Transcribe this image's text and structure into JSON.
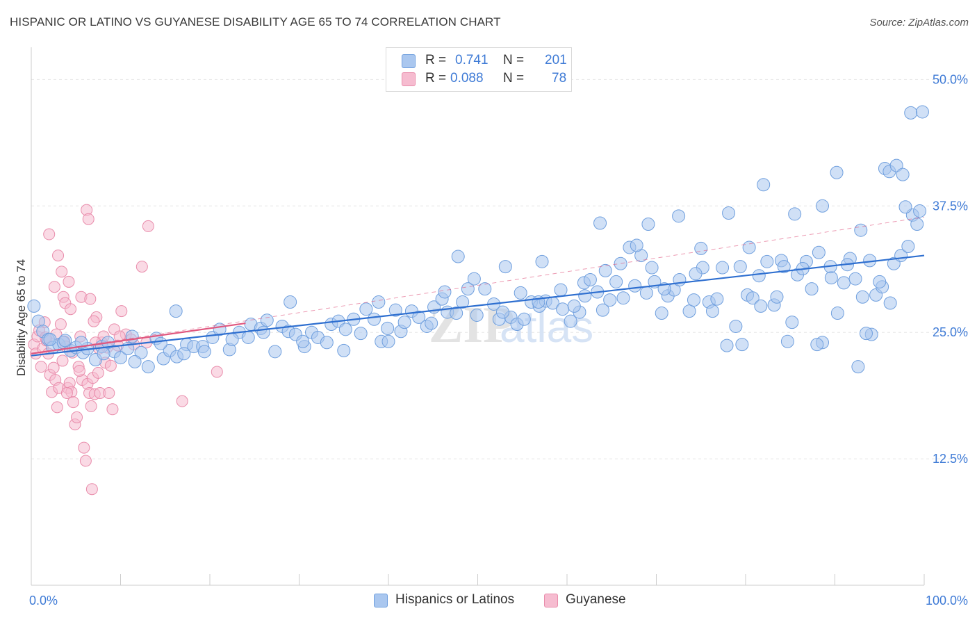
{
  "title": "HISPANIC OR LATINO VS GUYANESE DISABILITY AGE 65 TO 74 CORRELATION CHART",
  "source": "Source: ZipAtlas.com",
  "watermark": {
    "zip": "ZIP",
    "atlas": "atlas"
  },
  "legend": {
    "rows": [
      {
        "r_label": "R =",
        "r_value": "0.741",
        "n_label": "N =",
        "n_value": "201"
      },
      {
        "r_label": "R =",
        "r_value": "0.088",
        "n_label": "N =",
        "n_value": "78"
      }
    ]
  },
  "bottom_legend": {
    "blue": "Hispanics or Latinos",
    "pink": "Guyanese"
  },
  "colors": {
    "blue_fill": "#aac7ef",
    "blue_stroke": "#6f9fde",
    "blue_line": "#2e6fd0",
    "pink_fill": "#f6bcd0",
    "pink_stroke": "#e98cab",
    "pink_line": "#e0577f",
    "tick_label": "#3f7bd6",
    "grid": "#e6e6e6"
  },
  "chart_data": {
    "type": "scatter",
    "title": "HISPANIC OR LATINO VS GUYANESE DISABILITY AGE 65 TO 74 CORRELATION CHART",
    "ylabel": "Disability Age 65 to 74",
    "xlabel": "",
    "xlim": [
      0,
      100
    ],
    "ylim": [
      0,
      52.5
    ],
    "x_tick_labels": [
      "0.0%",
      "100.0%"
    ],
    "y_ticks": [
      12.5,
      25.0,
      37.5,
      50.0
    ],
    "y_tick_labels": [
      "12.5%",
      "25.0%",
      "37.5%",
      "50.0%"
    ],
    "grid": "horizontal dashed",
    "series": [
      {
        "name": "Hispanics or Latinos",
        "R": 0.741,
        "N": 201,
        "trend": {
          "x": [
            0,
            100
          ],
          "y": [
            22.7,
            32.6
          ]
        },
        "points": [
          [
            0.3,
            27.6
          ],
          [
            0.8,
            26.1
          ],
          [
            1.3,
            25.1
          ],
          [
            1.9,
            24.3
          ],
          [
            2.4,
            23.5
          ],
          [
            3.1,
            23.8
          ],
          [
            3.6,
            24.0
          ],
          [
            4.4,
            23.2
          ],
          [
            5.0,
            23.5
          ],
          [
            5.8,
            23.0
          ],
          [
            6.3,
            23.4
          ],
          [
            7.2,
            22.3
          ],
          [
            7.9,
            23.6
          ],
          [
            8.6,
            24.0
          ],
          [
            9.3,
            23.1
          ],
          [
            10.0,
            22.5
          ],
          [
            10.8,
            23.4
          ],
          [
            11.3,
            24.6
          ],
          [
            12.3,
            23.0
          ],
          [
            13.1,
            21.6
          ],
          [
            14.0,
            24.4
          ],
          [
            14.8,
            22.4
          ],
          [
            15.5,
            23.2
          ],
          [
            16.3,
            22.6
          ],
          [
            17.4,
            23.8
          ],
          [
            18.2,
            23.6
          ],
          [
            19.2,
            23.6
          ],
          [
            20.3,
            24.5
          ],
          [
            21.1,
            25.3
          ],
          [
            22.2,
            23.3
          ],
          [
            23.3,
            25.0
          ],
          [
            24.3,
            24.5
          ],
          [
            24.6,
            25.8
          ],
          [
            25.7,
            25.4
          ],
          [
            26.4,
            26.2
          ],
          [
            27.3,
            23.1
          ],
          [
            28.1,
            25.6
          ],
          [
            28.8,
            25.1
          ],
          [
            29.6,
            24.8
          ],
          [
            30.6,
            23.6
          ],
          [
            31.4,
            25.0
          ],
          [
            32.1,
            24.5
          ],
          [
            33.1,
            24.0
          ],
          [
            33.6,
            25.8
          ],
          [
            34.4,
            26.1
          ],
          [
            35.2,
            25.3
          ],
          [
            36.1,
            26.3
          ],
          [
            36.9,
            24.9
          ],
          [
            37.5,
            27.3
          ],
          [
            38.4,
            26.3
          ],
          [
            39.2,
            24.1
          ],
          [
            39.9,
            25.4
          ],
          [
            40.8,
            27.2
          ],
          [
            41.4,
            25.1
          ],
          [
            41.8,
            26.0
          ],
          [
            42.6,
            27.1
          ],
          [
            43.4,
            26.5
          ],
          [
            44.3,
            25.6
          ],
          [
            45.1,
            27.5
          ],
          [
            46.0,
            28.3
          ],
          [
            46.6,
            27.0
          ],
          [
            47.6,
            26.9
          ],
          [
            48.3,
            28.0
          ],
          [
            48.9,
            29.3
          ],
          [
            49.6,
            30.3
          ],
          [
            50.8,
            29.3
          ],
          [
            51.8,
            27.8
          ],
          [
            52.4,
            26.3
          ],
          [
            53.7,
            26.5
          ],
          [
            54.4,
            25.8
          ],
          [
            55.2,
            26.3
          ],
          [
            56.0,
            28.0
          ],
          [
            56.9,
            27.6
          ],
          [
            57.6,
            28.1
          ],
          [
            58.4,
            27.9
          ],
          [
            59.5,
            27.3
          ],
          [
            60.4,
            26.1
          ],
          [
            61.4,
            27.0
          ],
          [
            61.9,
            29.9
          ],
          [
            62.6,
            30.2
          ],
          [
            63.4,
            29.0
          ],
          [
            64.0,
            27.2
          ],
          [
            64.8,
            28.2
          ],
          [
            65.5,
            30.0
          ],
          [
            66.3,
            28.4
          ],
          [
            67.0,
            33.4
          ],
          [
            67.6,
            29.6
          ],
          [
            68.3,
            32.6
          ],
          [
            68.9,
            28.9
          ],
          [
            69.8,
            30.0
          ],
          [
            70.6,
            26.9
          ],
          [
            71.3,
            28.6
          ],
          [
            72.0,
            29.2
          ],
          [
            72.6,
            30.2
          ],
          [
            73.7,
            27.1
          ],
          [
            74.2,
            28.2
          ],
          [
            75.2,
            31.4
          ],
          [
            75.9,
            28.0
          ],
          [
            76.3,
            27.1
          ],
          [
            77.4,
            31.4
          ],
          [
            77.9,
            23.7
          ],
          [
            78.9,
            25.6
          ],
          [
            79.6,
            23.8
          ],
          [
            80.2,
            28.7
          ],
          [
            80.8,
            28.4
          ],
          [
            81.5,
            30.6
          ],
          [
            82.4,
            32.0
          ],
          [
            83.2,
            27.7
          ],
          [
            84.0,
            32.1
          ],
          [
            84.7,
            24.1
          ],
          [
            85.2,
            26.0
          ],
          [
            85.8,
            30.7
          ],
          [
            86.8,
            32.0
          ],
          [
            87.4,
            29.3
          ],
          [
            88.2,
            32.9
          ],
          [
            88.6,
            24.0
          ],
          [
            89.6,
            30.4
          ],
          [
            90.3,
            26.9
          ],
          [
            91.0,
            29.9
          ],
          [
            91.7,
            32.3
          ],
          [
            92.3,
            30.3
          ],
          [
            93.1,
            28.5
          ],
          [
            93.9,
            32.1
          ],
          [
            94.6,
            28.7
          ],
          [
            95.3,
            29.5
          ],
          [
            96.2,
            27.9
          ],
          [
            96.6,
            31.8
          ],
          [
            97.4,
            32.6
          ],
          [
            98.2,
            33.5
          ],
          [
            98.7,
            36.6
          ],
          [
            99.2,
            35.7
          ],
          [
            99.5,
            37.0
          ],
          [
            16.2,
            27.1
          ],
          [
            29.0,
            28.0
          ],
          [
            47.8,
            32.5
          ],
          [
            53.1,
            31.5
          ],
          [
            57.2,
            32.0
          ],
          [
            60.8,
            27.6
          ],
          [
            63.7,
            35.8
          ],
          [
            66.0,
            31.8
          ],
          [
            69.1,
            35.7
          ],
          [
            72.5,
            36.5
          ],
          [
            75.0,
            33.3
          ],
          [
            78.1,
            36.8
          ],
          [
            80.4,
            33.4
          ],
          [
            82.0,
            39.6
          ],
          [
            83.5,
            28.5
          ],
          [
            85.5,
            36.7
          ],
          [
            86.4,
            31.3
          ],
          [
            88.6,
            37.5
          ],
          [
            90.2,
            40.8
          ],
          [
            91.4,
            31.7
          ],
          [
            92.9,
            35.1
          ],
          [
            94.1,
            24.8
          ],
          [
            95.6,
            41.2
          ],
          [
            96.1,
            40.9
          ],
          [
            96.9,
            41.5
          ],
          [
            97.6,
            40.6
          ],
          [
            98.5,
            46.7
          ],
          [
            99.8,
            46.8
          ],
          [
            2.1,
            24.3
          ],
          [
            3.8,
            24.2
          ],
          [
            5.6,
            24.0
          ],
          [
            8.1,
            22.9
          ],
          [
            11.6,
            22.1
          ],
          [
            14.5,
            23.9
          ],
          [
            17.1,
            22.9
          ],
          [
            19.4,
            23.1
          ],
          [
            22.5,
            24.3
          ],
          [
            26.0,
            25.0
          ],
          [
            30.4,
            24.1
          ],
          [
            35.0,
            23.2
          ],
          [
            40.0,
            24.1
          ],
          [
            44.8,
            25.9
          ],
          [
            49.9,
            26.7
          ],
          [
            54.8,
            28.9
          ],
          [
            59.3,
            29.2
          ],
          [
            64.3,
            31.1
          ],
          [
            69.5,
            31.4
          ],
          [
            74.4,
            30.8
          ],
          [
            79.4,
            31.5
          ],
          [
            84.3,
            31.5
          ],
          [
            89.5,
            31.5
          ],
          [
            92.6,
            21.6
          ],
          [
            95.0,
            30.0
          ],
          [
            97.9,
            37.4
          ],
          [
            56.8,
            28.0
          ],
          [
            67.8,
            33.6
          ],
          [
            46.3,
            29.0
          ],
          [
            52.8,
            27.0
          ],
          [
            38.9,
            28.0
          ],
          [
            62.0,
            28.6
          ],
          [
            70.9,
            29.3
          ],
          [
            76.8,
            28.3
          ],
          [
            81.7,
            27.6
          ],
          [
            88.0,
            23.8
          ],
          [
            93.5,
            24.9
          ]
        ]
      },
      {
        "name": "Guyanese",
        "R": 0.088,
        "N": 78,
        "trend": {
          "x": [
            0,
            24
          ],
          "y": [
            22.9,
            25.9
          ]
        },
        "points": [
          [
            0.3,
            23.8
          ],
          [
            0.5,
            22.9
          ],
          [
            0.7,
            24.6
          ],
          [
            0.9,
            25.2
          ],
          [
            1.1,
            21.6
          ],
          [
            1.3,
            23.4
          ],
          [
            1.5,
            26.0
          ],
          [
            1.7,
            24.2
          ],
          [
            1.9,
            22.9
          ],
          [
            2.1,
            20.8
          ],
          [
            2.3,
            19.1
          ],
          [
            2.5,
            21.5
          ],
          [
            2.7,
            20.3
          ],
          [
            2.9,
            17.6
          ],
          [
            3.1,
            19.5
          ],
          [
            3.3,
            25.8
          ],
          [
            3.5,
            22.2
          ],
          [
            3.7,
            24.1
          ],
          [
            3.9,
            23.6
          ],
          [
            4.1,
            19.5
          ],
          [
            4.3,
            20.0
          ],
          [
            4.5,
            19.1
          ],
          [
            4.7,
            18.1
          ],
          [
            4.9,
            15.9
          ],
          [
            5.1,
            16.6
          ],
          [
            5.3,
            21.6
          ],
          [
            5.5,
            24.6
          ],
          [
            5.7,
            20.3
          ],
          [
            5.9,
            13.6
          ],
          [
            6.1,
            12.3
          ],
          [
            6.3,
            19.9
          ],
          [
            6.5,
            19.0
          ],
          [
            6.7,
            17.7
          ],
          [
            6.9,
            20.5
          ],
          [
            7.1,
            18.9
          ],
          [
            7.3,
            26.5
          ],
          [
            7.5,
            21.0
          ],
          [
            7.7,
            19.0
          ],
          [
            7.9,
            24.0
          ],
          [
            8.1,
            24.6
          ],
          [
            8.3,
            22.0
          ],
          [
            8.5,
            23.5
          ],
          [
            8.7,
            19.0
          ],
          [
            8.9,
            21.7
          ],
          [
            9.1,
            17.4
          ],
          [
            9.3,
            25.3
          ],
          [
            9.7,
            23.7
          ],
          [
            10.1,
            27.1
          ],
          [
            10.6,
            24.8
          ],
          [
            11.2,
            24.3
          ],
          [
            11.5,
            23.8
          ],
          [
            12.4,
            31.5
          ],
          [
            13.1,
            35.5
          ],
          [
            16.9,
            18.2
          ],
          [
            20.8,
            21.1
          ],
          [
            1.6,
            24.5
          ],
          [
            2.0,
            34.7
          ],
          [
            2.6,
            29.5
          ],
          [
            3.0,
            32.6
          ],
          [
            3.4,
            31.0
          ],
          [
            3.6,
            28.5
          ],
          [
            3.8,
            27.9
          ],
          [
            4.2,
            30.0
          ],
          [
            4.4,
            27.3
          ],
          [
            5.6,
            28.5
          ],
          [
            6.2,
            37.1
          ],
          [
            6.4,
            36.2
          ],
          [
            6.6,
            28.3
          ],
          [
            7.0,
            26.1
          ],
          [
            7.2,
            24.0
          ],
          [
            7.6,
            23.4
          ],
          [
            5.4,
            21.2
          ],
          [
            2.8,
            24.8
          ],
          [
            4.0,
            19.0
          ],
          [
            4.6,
            23.0
          ],
          [
            6.8,
            9.5
          ],
          [
            9.9,
            24.6
          ],
          [
            12.9,
            24.0
          ]
        ]
      }
    ]
  }
}
